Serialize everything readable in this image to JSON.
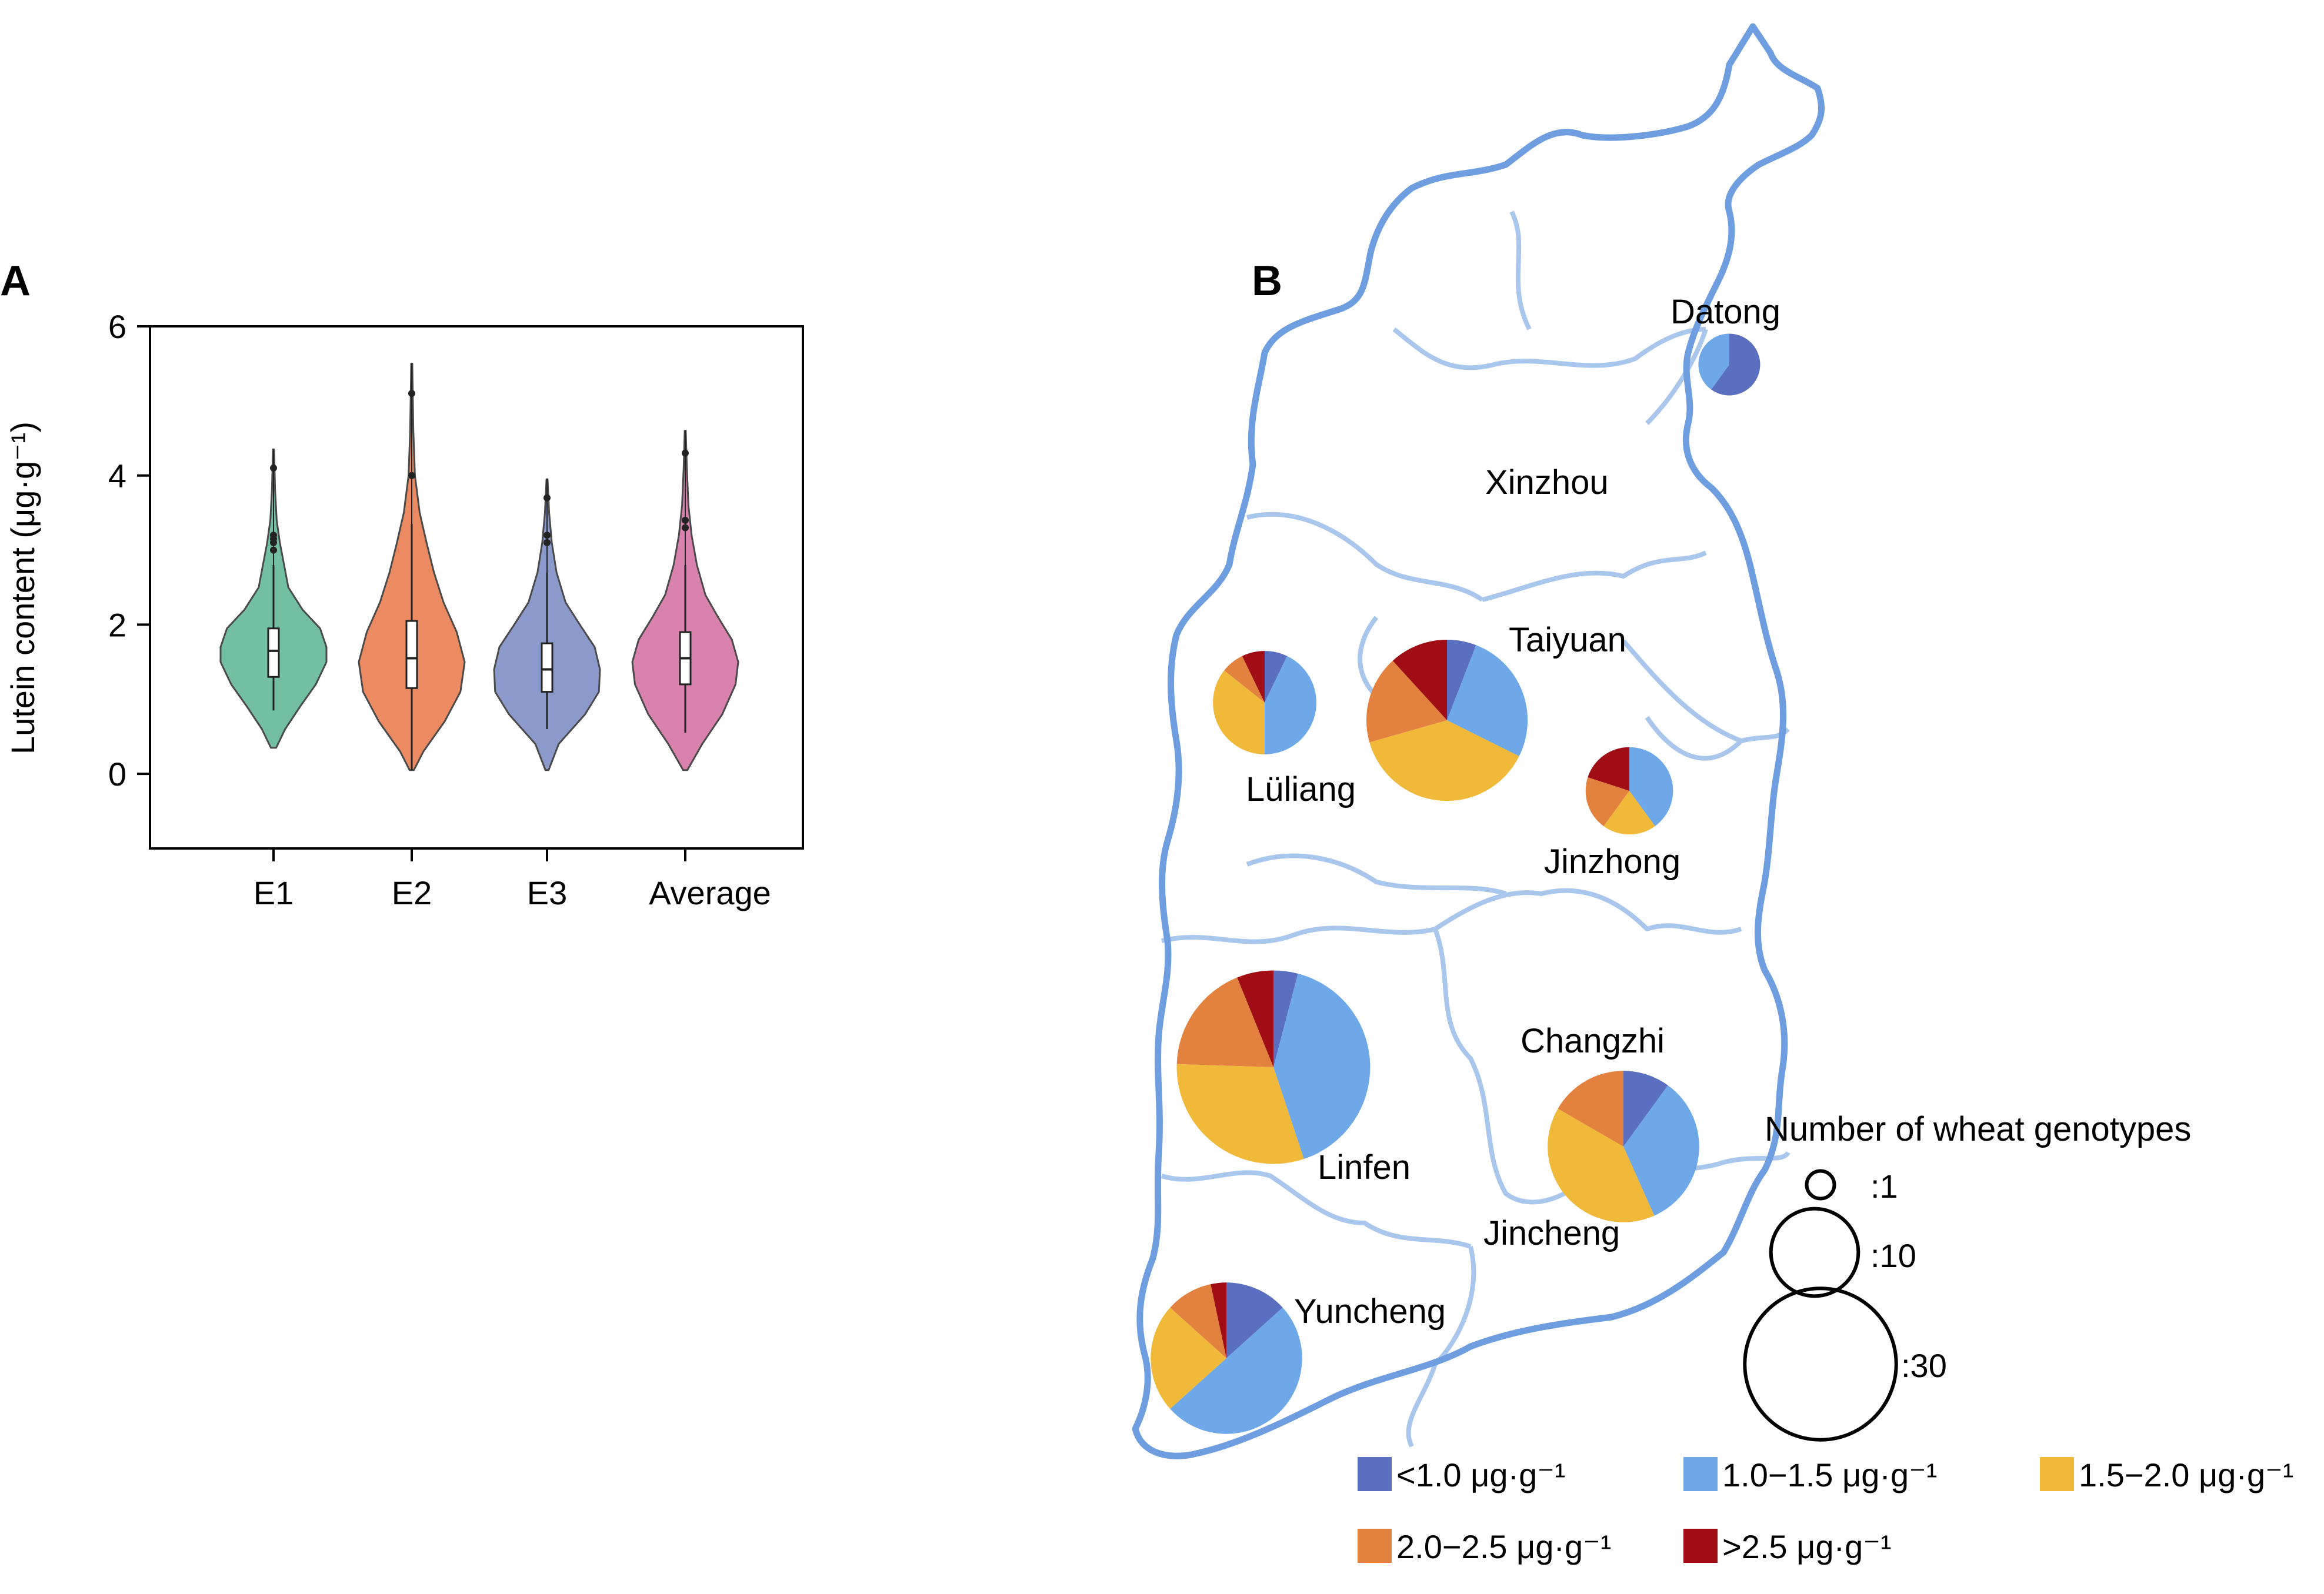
{
  "panels": {
    "a_label": "A",
    "b_label": "B"
  },
  "chart_data": [
    {
      "type": "violin",
      "ylabel": "Lutein content (μg·g⁻¹)",
      "ylim": [
        -1,
        6
      ],
      "yticks": [
        0,
        2,
        4,
        6
      ],
      "categories": [
        "E1",
        "E2",
        "E3",
        "Average"
      ],
      "colors": [
        "#72bfa1",
        "#ec8a62",
        "#8b9acb",
        "#d882ad"
      ],
      "series": [
        {
          "category": "E1",
          "min": 0.35,
          "max": 4.35,
          "median": 1.65,
          "q1": 1.3,
          "q3": 1.95,
          "whisker_low": 0.85,
          "whisker_high": 2.8,
          "outliers": [
            3.0,
            3.1,
            3.15,
            3.2,
            4.1
          ],
          "density": [
            [
              0.35,
              0.05
            ],
            [
              0.6,
              0.22
            ],
            [
              0.9,
              0.5
            ],
            [
              1.2,
              0.8
            ],
            [
              1.5,
              1.0
            ],
            [
              1.7,
              1.0
            ],
            [
              1.95,
              0.88
            ],
            [
              2.2,
              0.55
            ],
            [
              2.5,
              0.28
            ],
            [
              2.8,
              0.2
            ],
            [
              3.1,
              0.12
            ],
            [
              3.4,
              0.06
            ],
            [
              3.8,
              0.03
            ],
            [
              4.35,
              0.01
            ]
          ]
        },
        {
          "category": "E2",
          "min": 0.05,
          "max": 5.5,
          "median": 1.55,
          "q1": 1.15,
          "q3": 2.05,
          "whisker_low": 0.05,
          "whisker_high": 3.35,
          "outliers": [
            4.0,
            5.1
          ],
          "density": [
            [
              0.05,
              0.04
            ],
            [
              0.3,
              0.22
            ],
            [
              0.7,
              0.62
            ],
            [
              1.1,
              0.92
            ],
            [
              1.5,
              1.0
            ],
            [
              1.9,
              0.85
            ],
            [
              2.3,
              0.6
            ],
            [
              2.7,
              0.42
            ],
            [
              3.1,
              0.28
            ],
            [
              3.5,
              0.15
            ],
            [
              4.0,
              0.06
            ],
            [
              4.6,
              0.03
            ],
            [
              5.5,
              0.01
            ]
          ]
        },
        {
          "category": "E3",
          "min": 0.05,
          "max": 3.95,
          "median": 1.4,
          "q1": 1.1,
          "q3": 1.75,
          "whisker_low": 0.6,
          "whisker_high": 2.7,
          "outliers": [
            3.1,
            3.2,
            3.7
          ],
          "density": [
            [
              0.05,
              0.03
            ],
            [
              0.4,
              0.22
            ],
            [
              0.8,
              0.72
            ],
            [
              1.1,
              0.98
            ],
            [
              1.4,
              1.0
            ],
            [
              1.7,
              0.9
            ],
            [
              2.0,
              0.62
            ],
            [
              2.3,
              0.35
            ],
            [
              2.7,
              0.18
            ],
            [
              3.1,
              0.09
            ],
            [
              3.5,
              0.04
            ],
            [
              3.95,
              0.01
            ]
          ]
        },
        {
          "category": "Average",
          "min": 0.05,
          "max": 4.6,
          "median": 1.55,
          "q1": 1.2,
          "q3": 1.9,
          "whisker_low": 0.55,
          "whisker_high": 2.8,
          "outliers": [
            3.3,
            3.4,
            4.3
          ],
          "density": [
            [
              0.05,
              0.04
            ],
            [
              0.4,
              0.32
            ],
            [
              0.8,
              0.7
            ],
            [
              1.2,
              0.95
            ],
            [
              1.5,
              1.0
            ],
            [
              1.8,
              0.88
            ],
            [
              2.1,
              0.62
            ],
            [
              2.4,
              0.38
            ],
            [
              2.8,
              0.22
            ],
            [
              3.2,
              0.12
            ],
            [
              3.6,
              0.06
            ],
            [
              4.1,
              0.03
            ],
            [
              4.6,
              0.01
            ]
          ]
        }
      ]
    },
    {
      "type": "pie-map",
      "legend_title": "Number of wheat genotypes",
      "size_legend": [
        {
          "label": ":1",
          "count": 1
        },
        {
          "label": ":10",
          "count": 10
        },
        {
          "label": ":30",
          "count": 30
        }
      ],
      "class_legend": [
        {
          "label": "<1.0 μg·g⁻¹",
          "color": "#5a6fc0"
        },
        {
          "label": "1.0−1.5 μg·g⁻¹",
          "color": "#6ea8e8"
        },
        {
          "label": "1.5−2.0 μg·g⁻¹",
          "color": "#f0b93a"
        },
        {
          "label": "2.0−2.5 μg·g⁻¹",
          "color": "#e3823f"
        },
        {
          "label": ">2.5 μg·g⁻¹",
          "color": "#a00d14"
        }
      ],
      "region_labels": [
        "Datong",
        "Xinzhou",
        "Taiyuan",
        "Lüliang",
        "Jinzhong",
        "Changzhi",
        "Linfen",
        "Jincheng",
        "Yuncheng"
      ],
      "pies": [
        {
          "region": "Datong",
          "counts": [
            3,
            2,
            0,
            0,
            0
          ]
        },
        {
          "region": "Lüliang",
          "counts": [
            1,
            6,
            5,
            1,
            1
          ]
        },
        {
          "region": "Taiyuan",
          "counts": [
            2,
            9,
            13,
            6,
            4
          ]
        },
        {
          "region": "Jinzhong",
          "counts": [
            0,
            4,
            2,
            2,
            2
          ]
        },
        {
          "region": "Linfen",
          "counts": [
            2,
            20,
            15,
            9,
            3
          ]
        },
        {
          "region": "Changzhi",
          "counts": [
            3,
            10,
            12,
            5,
            0
          ]
        },
        {
          "region": "Yuncheng",
          "counts": [
            4,
            15,
            7,
            3,
            1
          ]
        }
      ]
    }
  ]
}
